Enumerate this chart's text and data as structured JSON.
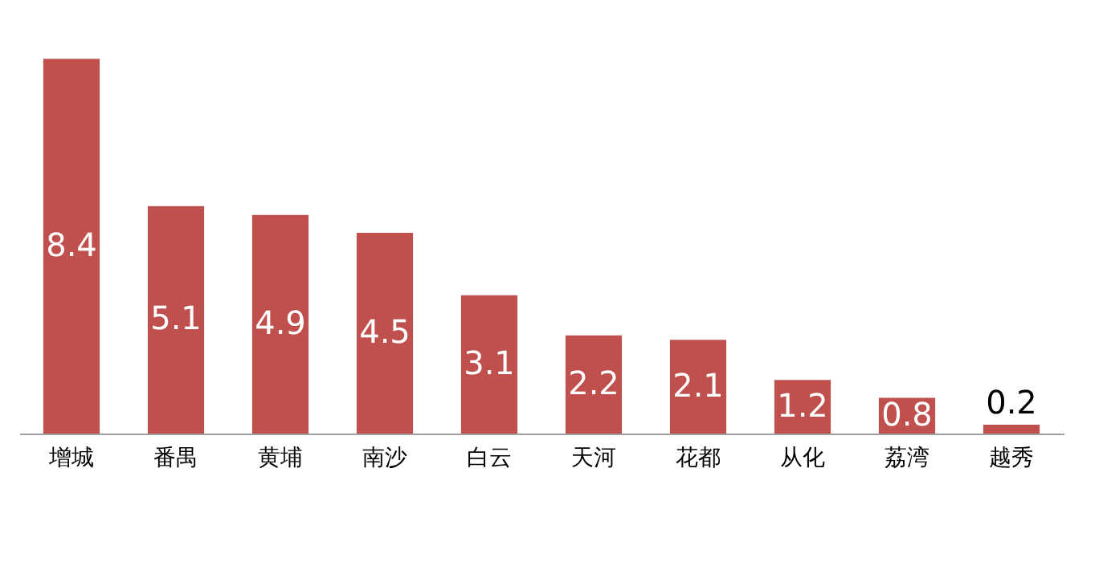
{
  "chart_data": {
    "type": "bar",
    "categories": [
      "增城",
      "番禺",
      "黄埔",
      "南沙",
      "白云",
      "天河",
      "花都",
      "从化",
      "荔湾",
      "越秀"
    ],
    "values": [
      8.4,
      5.1,
      4.9,
      4.5,
      3.1,
      2.2,
      2.1,
      1.2,
      0.8,
      0.2
    ],
    "color": "#c0504d",
    "data_labels": true,
    "grid": false
  }
}
